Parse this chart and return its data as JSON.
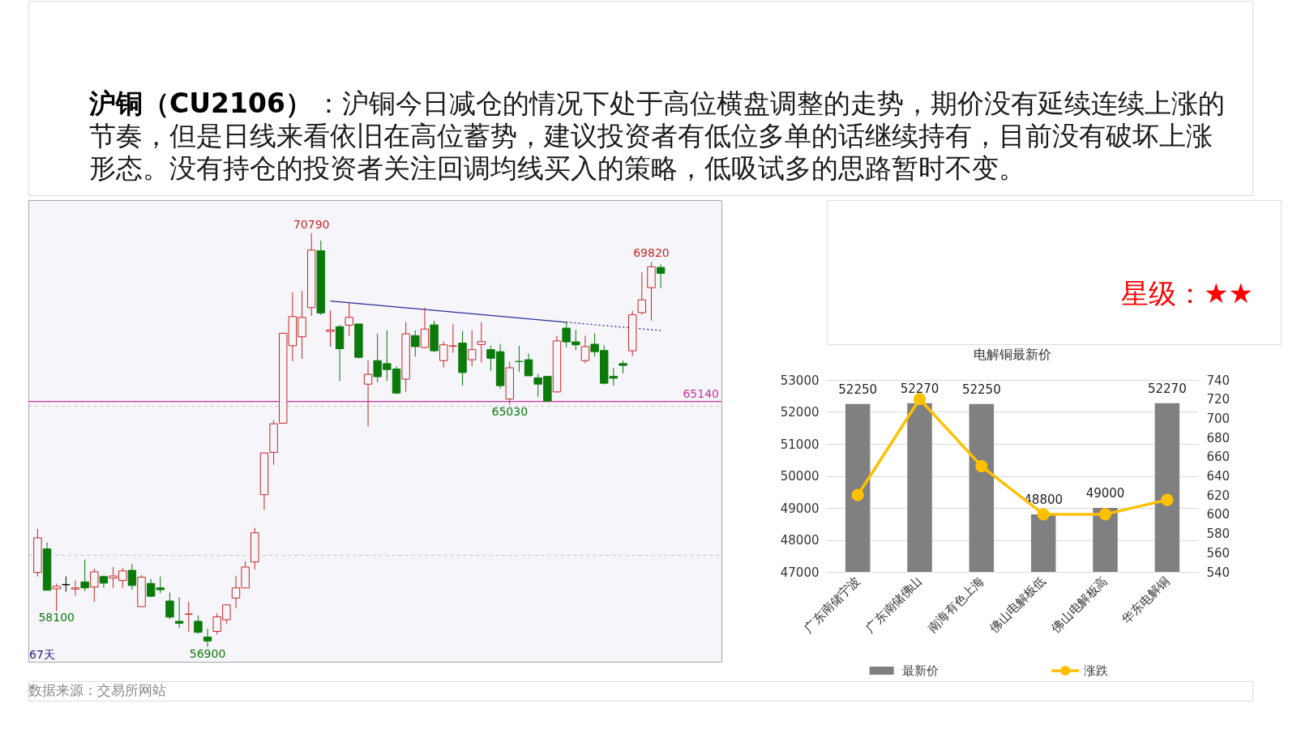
{
  "chart_data": [
    {
      "type": "candlestick",
      "categories": [
        null,
        null,
        null,
        null,
        null,
        null,
        null,
        null,
        null,
        null,
        null,
        null,
        null,
        null,
        null,
        null,
        null,
        null,
        null,
        null,
        null,
        null,
        null,
        null,
        null,
        null,
        null,
        null,
        null,
        null,
        null,
        null,
        null,
        null,
        null,
        null,
        null,
        null,
        null,
        null,
        null,
        null,
        null,
        null,
        null,
        null,
        null,
        null,
        null,
        null,
        null,
        null,
        null,
        null,
        null,
        null,
        null,
        null,
        null,
        null,
        null,
        null,
        null,
        null,
        null,
        null,
        null
      ],
      "ohlc": [
        [
          59400,
          60860,
          59260,
          60560
        ],
        [
          60190,
          60410,
          58800,
          58800
        ],
        [
          58850,
          59030,
          58100,
          58930
        ],
        [
          58990,
          59260,
          58750,
          58990
        ],
        [
          58840,
          59130,
          58620,
          58880
        ],
        [
          59080,
          59830,
          58770,
          58880
        ],
        [
          58910,
          59530,
          58410,
          59420
        ],
        [
          59260,
          59290,
          58880,
          59040
        ],
        [
          59210,
          59580,
          58880,
          59280
        ],
        [
          59130,
          59550,
          58880,
          59450
        ],
        [
          59470,
          59680,
          58820,
          58960
        ],
        [
          58250,
          59310,
          58250,
          59240
        ],
        [
          59030,
          59180,
          58570,
          58600
        ],
        [
          58880,
          59260,
          58700,
          58820
        ],
        [
          58440,
          58720,
          57830,
          57900
        ],
        [
          57760,
          58570,
          57540,
          57690
        ],
        [
          58000,
          58420,
          57410,
          58000
        ],
        [
          57760,
          57960,
          57340,
          57390
        ],
        [
          57230,
          57510,
          56900,
          57100
        ],
        [
          57420,
          58030,
          57320,
          57910
        ],
        [
          57810,
          58310,
          57670,
          58310
        ],
        [
          58540,
          59290,
          58200,
          58880
        ],
        [
          58880,
          59770,
          58880,
          59580
        ],
        [
          59750,
          60900,
          59500,
          60730
        ],
        [
          62010,
          63410,
          61500,
          63410
        ],
        [
          63430,
          64510,
          63010,
          64390
        ],
        [
          64410,
          67430,
          64390,
          67430
        ],
        [
          67010,
          68800,
          66490,
          67990
        ],
        [
          67310,
          68850,
          66570,
          67960
        ],
        [
          68290,
          70790,
          68010,
          70220
        ],
        [
          70200,
          70540,
          68040,
          68110
        ],
        [
          67490,
          68190,
          66980,
          67540
        ],
        [
          67650,
          67700,
          65830,
          66910
        ],
        [
          67700,
          68480,
          67350,
          67960
        ],
        [
          67740,
          67740,
          66590,
          66620
        ],
        [
          65720,
          66520,
          64290,
          66050
        ],
        [
          66510,
          67410,
          65780,
          65970
        ],
        [
          66410,
          67530,
          65830,
          66210
        ],
        [
          66230,
          66320,
          65390,
          65420
        ],
        [
          65890,
          67800,
          65460,
          67410
        ],
        [
          67350,
          67530,
          66640,
          66980
        ],
        [
          66950,
          68290,
          66930,
          67570
        ],
        [
          67710,
          67850,
          66800,
          66840
        ],
        [
          66510,
          67160,
          66280,
          67040
        ],
        [
          67000,
          67740,
          66770,
          67000
        ],
        [
          67100,
          67500,
          65670,
          66110
        ],
        [
          66540,
          67530,
          66320,
          66880
        ],
        [
          67050,
          67800,
          66440,
          67150
        ],
        [
          66880,
          67010,
          66160,
          66590
        ],
        [
          66810,
          67070,
          65570,
          65670
        ],
        [
          65220,
          66470,
          65030,
          66270
        ],
        [
          66480,
          67010,
          66130,
          66480
        ],
        [
          66540,
          66750,
          66000,
          66000
        ],
        [
          65930,
          66070,
          65290,
          65720
        ],
        [
          65980,
          66000,
          65150,
          65150
        ],
        [
          65460,
          67350,
          65440,
          67170
        ],
        [
          67600,
          67800,
          66960,
          67140
        ],
        [
          67140,
          67540,
          66860,
          67040
        ],
        [
          66510,
          67350,
          66420,
          66980
        ],
        [
          67060,
          67430,
          66640,
          66810
        ],
        [
          66850,
          67030,
          65710,
          65750
        ],
        [
          65980,
          66270,
          65670,
          65920
        ],
        [
          66410,
          66510,
          66080,
          66350
        ],
        [
          66840,
          68180,
          66660,
          68050
        ],
        [
          68120,
          69480,
          68050,
          68550
        ],
        [
          68960,
          69820,
          67850,
          69660
        ],
        [
          69640,
          69740,
          68950,
          69440
        ]
      ],
      "colors": [
        "#c62828",
        "#0b7a0b",
        "#c62828",
        "#000000",
        "#c62828",
        "#0b7a0b",
        "#c62828",
        "#0b7a0b",
        "#c62828",
        "#c62828",
        "#0b7a0b",
        "#c62828",
        "#0b7a0b",
        "#0b7a0b",
        "#0b7a0b",
        "#0b7a0b",
        "#c62828",
        "#0b7a0b",
        "#0b7a0b",
        "#c62828",
        "#c62828",
        "#c62828",
        "#c62828",
        "#c62828",
        "#c62828",
        "#c62828",
        "#c62828",
        "#c62828",
        "#c62828",
        "#c62828",
        "#0b7a0b",
        "#c62828",
        "#0b7a0b",
        "#c62828",
        "#0b7a0b",
        "#c62828",
        "#0b7a0b",
        "#0b7a0b",
        "#0b7a0b",
        "#c62828",
        "#0b7a0b",
        "#c62828",
        "#0b7a0b",
        "#c62828",
        "#c62828",
        "#0b7a0b",
        "#c62828",
        "#c62828",
        "#0b7a0b",
        "#0b7a0b",
        "#c62828",
        "#0b7a0b",
        "#0b7a0b",
        "#0b7a0b",
        "#0b7a0b",
        "#c62828",
        "#0b7a0b",
        "#0b7a0b",
        "#c62828",
        "#0b7a0b",
        "#0b7a0b",
        "#0b7a0b",
        "#0b7a0b",
        "#c62828",
        "#c62828",
        "#c62828",
        "#0b7a0b"
      ],
      "series": [
        {
          "type": "line",
          "color": "#2b2b95",
          "line_style": "solid",
          "values": [
            null,
            null,
            null,
            null,
            null,
            null,
            null,
            null,
            null,
            null,
            null,
            null,
            null,
            null,
            null,
            null,
            null,
            null,
            null,
            null,
            null,
            null,
            null,
            null,
            null,
            null,
            null,
            null,
            null,
            null,
            null,
            68510,
            null,
            null,
            null,
            null,
            null,
            null,
            null,
            null,
            null,
            null,
            null,
            null,
            null,
            null,
            null,
            null,
            null,
            null,
            null,
            null,
            null,
            null,
            null,
            null,
            67800,
            null,
            null,
            null,
            null,
            null,
            null,
            null,
            null,
            null,
            null
          ]
        },
        {
          "type": "line",
          "color": "#2b2b95",
          "line_style": "dotted",
          "values": [
            null,
            null,
            null,
            null,
            null,
            null,
            null,
            null,
            null,
            null,
            null,
            null,
            null,
            null,
            null,
            null,
            null,
            null,
            null,
            null,
            null,
            null,
            null,
            null,
            null,
            null,
            null,
            null,
            null,
            null,
            null,
            null,
            null,
            null,
            null,
            null,
            null,
            null,
            null,
            null,
            null,
            null,
            null,
            null,
            null,
            null,
            null,
            null,
            null,
            null,
            null,
            null,
            null,
            null,
            null,
            null,
            67800,
            null,
            null,
            null,
            null,
            null,
            null,
            null,
            null,
            null,
            67520
          ]
        }
      ],
      "ref_lines": [
        {
          "axis": "y",
          "value": 65140,
          "label": "65140",
          "color": "#cc3399"
        }
      ],
      "ylim": [
        56400,
        71900
      ],
      "yticks": [
        60000,
        65000
      ],
      "grid": "y",
      "tick_labels": false,
      "annotations": [
        "沪铜（CU2106）",
        "：沪铜今日减仓的情况下处于高位横盘调整的走势，期价没有延续连续上涨的节奏，但是日线来看依旧在高位蓄势，建议投资者有低位多单的话继续持有，目前没有破坏上涨形态。没有持仓的投资者关注回调均线买入的策略，低吸试多的思路暂时不变。",
        "67天",
        "数据来源：交易所网站",
        {
          "text": "70790",
          "y": 70790
        },
        {
          "text": "69820",
          "y": 69820
        },
        {
          "text": "65030",
          "y": 65030
        },
        {
          "text": "58100",
          "y": 58100
        },
        {
          "text": "56900",
          "y": 56900
        }
      ]
    },
    {
      "type": "bar",
      "title": "电解铜最新价",
      "categories": [
        "广东南储宁波",
        "广东南储佛山",
        "南海有色上海",
        "佛山电解板低",
        "佛山电解板高",
        "华东电解铜"
      ],
      "series": [
        {
          "name": "最新价",
          "type": "bar",
          "color": "#808080",
          "values": [
            52250,
            52270,
            52250,
            48800,
            49000,
            52270
          ],
          "value_labels": [
            "52250",
            "52270",
            "52250",
            "48800",
            "49000",
            "52270"
          ]
        },
        {
          "name": "涨跌",
          "type": "line",
          "axis": "y2",
          "color": "#ffc000",
          "marker": "circle",
          "values": [
            620,
            720,
            650,
            600,
            600,
            615
          ]
        }
      ],
      "ylim": [
        47000,
        53000
      ],
      "yticks": [
        47000,
        48000,
        49000,
        50000,
        51000,
        52000,
        53000
      ],
      "y2lim": [
        540,
        740
      ],
      "y2ticks": [
        540,
        560,
        580,
        600,
        620,
        640,
        660,
        680,
        700,
        720,
        740
      ],
      "grid": "y",
      "legend": "bottom",
      "annotations": [
        "星级：★★"
      ]
    }
  ]
}
